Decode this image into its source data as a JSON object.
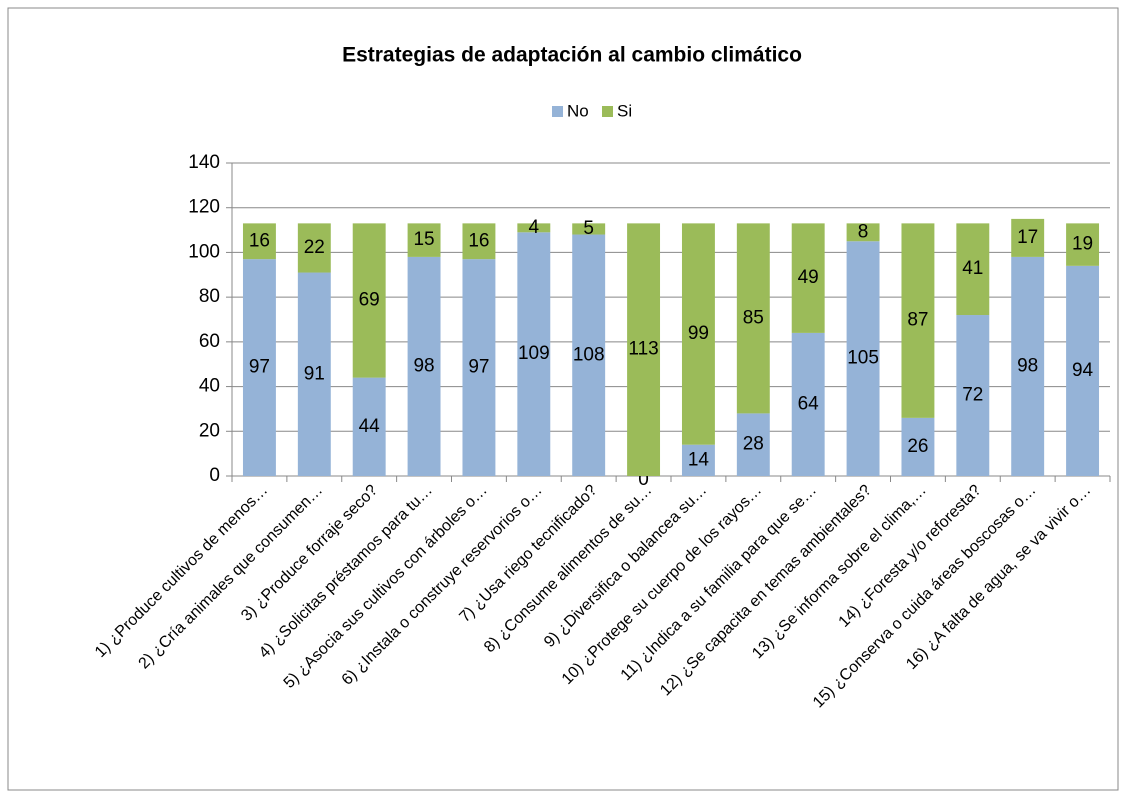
{
  "chart_data": {
    "type": "stacked_bar",
    "title": "Estrategias de adaptación al cambio climático",
    "categories": [
      "1) ¿Produce cultivos de menos…",
      "2) ¿Cría animales que consumen…",
      "3) ¿Produce forraje seco?",
      "4) ¿Solicitas préstamos para tu…",
      "5) ¿Asocia sus cultivos con árboles o…",
      "6) ¿Instala o construye reservorios o…",
      "7) ¿Usa riego tecnificado?",
      "8) ¿Consume alimentos de su…",
      "9) ¿Diversifica o balancea su…",
      "10) ¿Protege su cuerpo de los rayos…",
      "11) ¿Indica a su familia para que se…",
      "12) ¿Se capacita en temas ambientales?",
      "13) ¿Se informa sobre el clima,…",
      "14) ¿Foresta y/o reforesta?",
      "15) ¿Conserva o cuida áreas boscosas o…",
      "16) ¿A falta de agua, se va vivir o…"
    ],
    "series": [
      {
        "name": "No",
        "color": "#95b3d7",
        "values": [
          97,
          91,
          44,
          98,
          97,
          109,
          108,
          0,
          14,
          28,
          64,
          105,
          26,
          72,
          98,
          94
        ]
      },
      {
        "name": "Si",
        "color": "#9bbb59",
        "values": [
          16,
          22,
          69,
          15,
          16,
          4,
          5,
          113,
          99,
          85,
          49,
          8,
          87,
          41,
          17,
          19
        ]
      }
    ],
    "ylim": [
      0,
      140
    ],
    "yticks": [
      0,
      20,
      40,
      60,
      80,
      100,
      120,
      140
    ],
    "grid": true,
    "legend": "top"
  }
}
